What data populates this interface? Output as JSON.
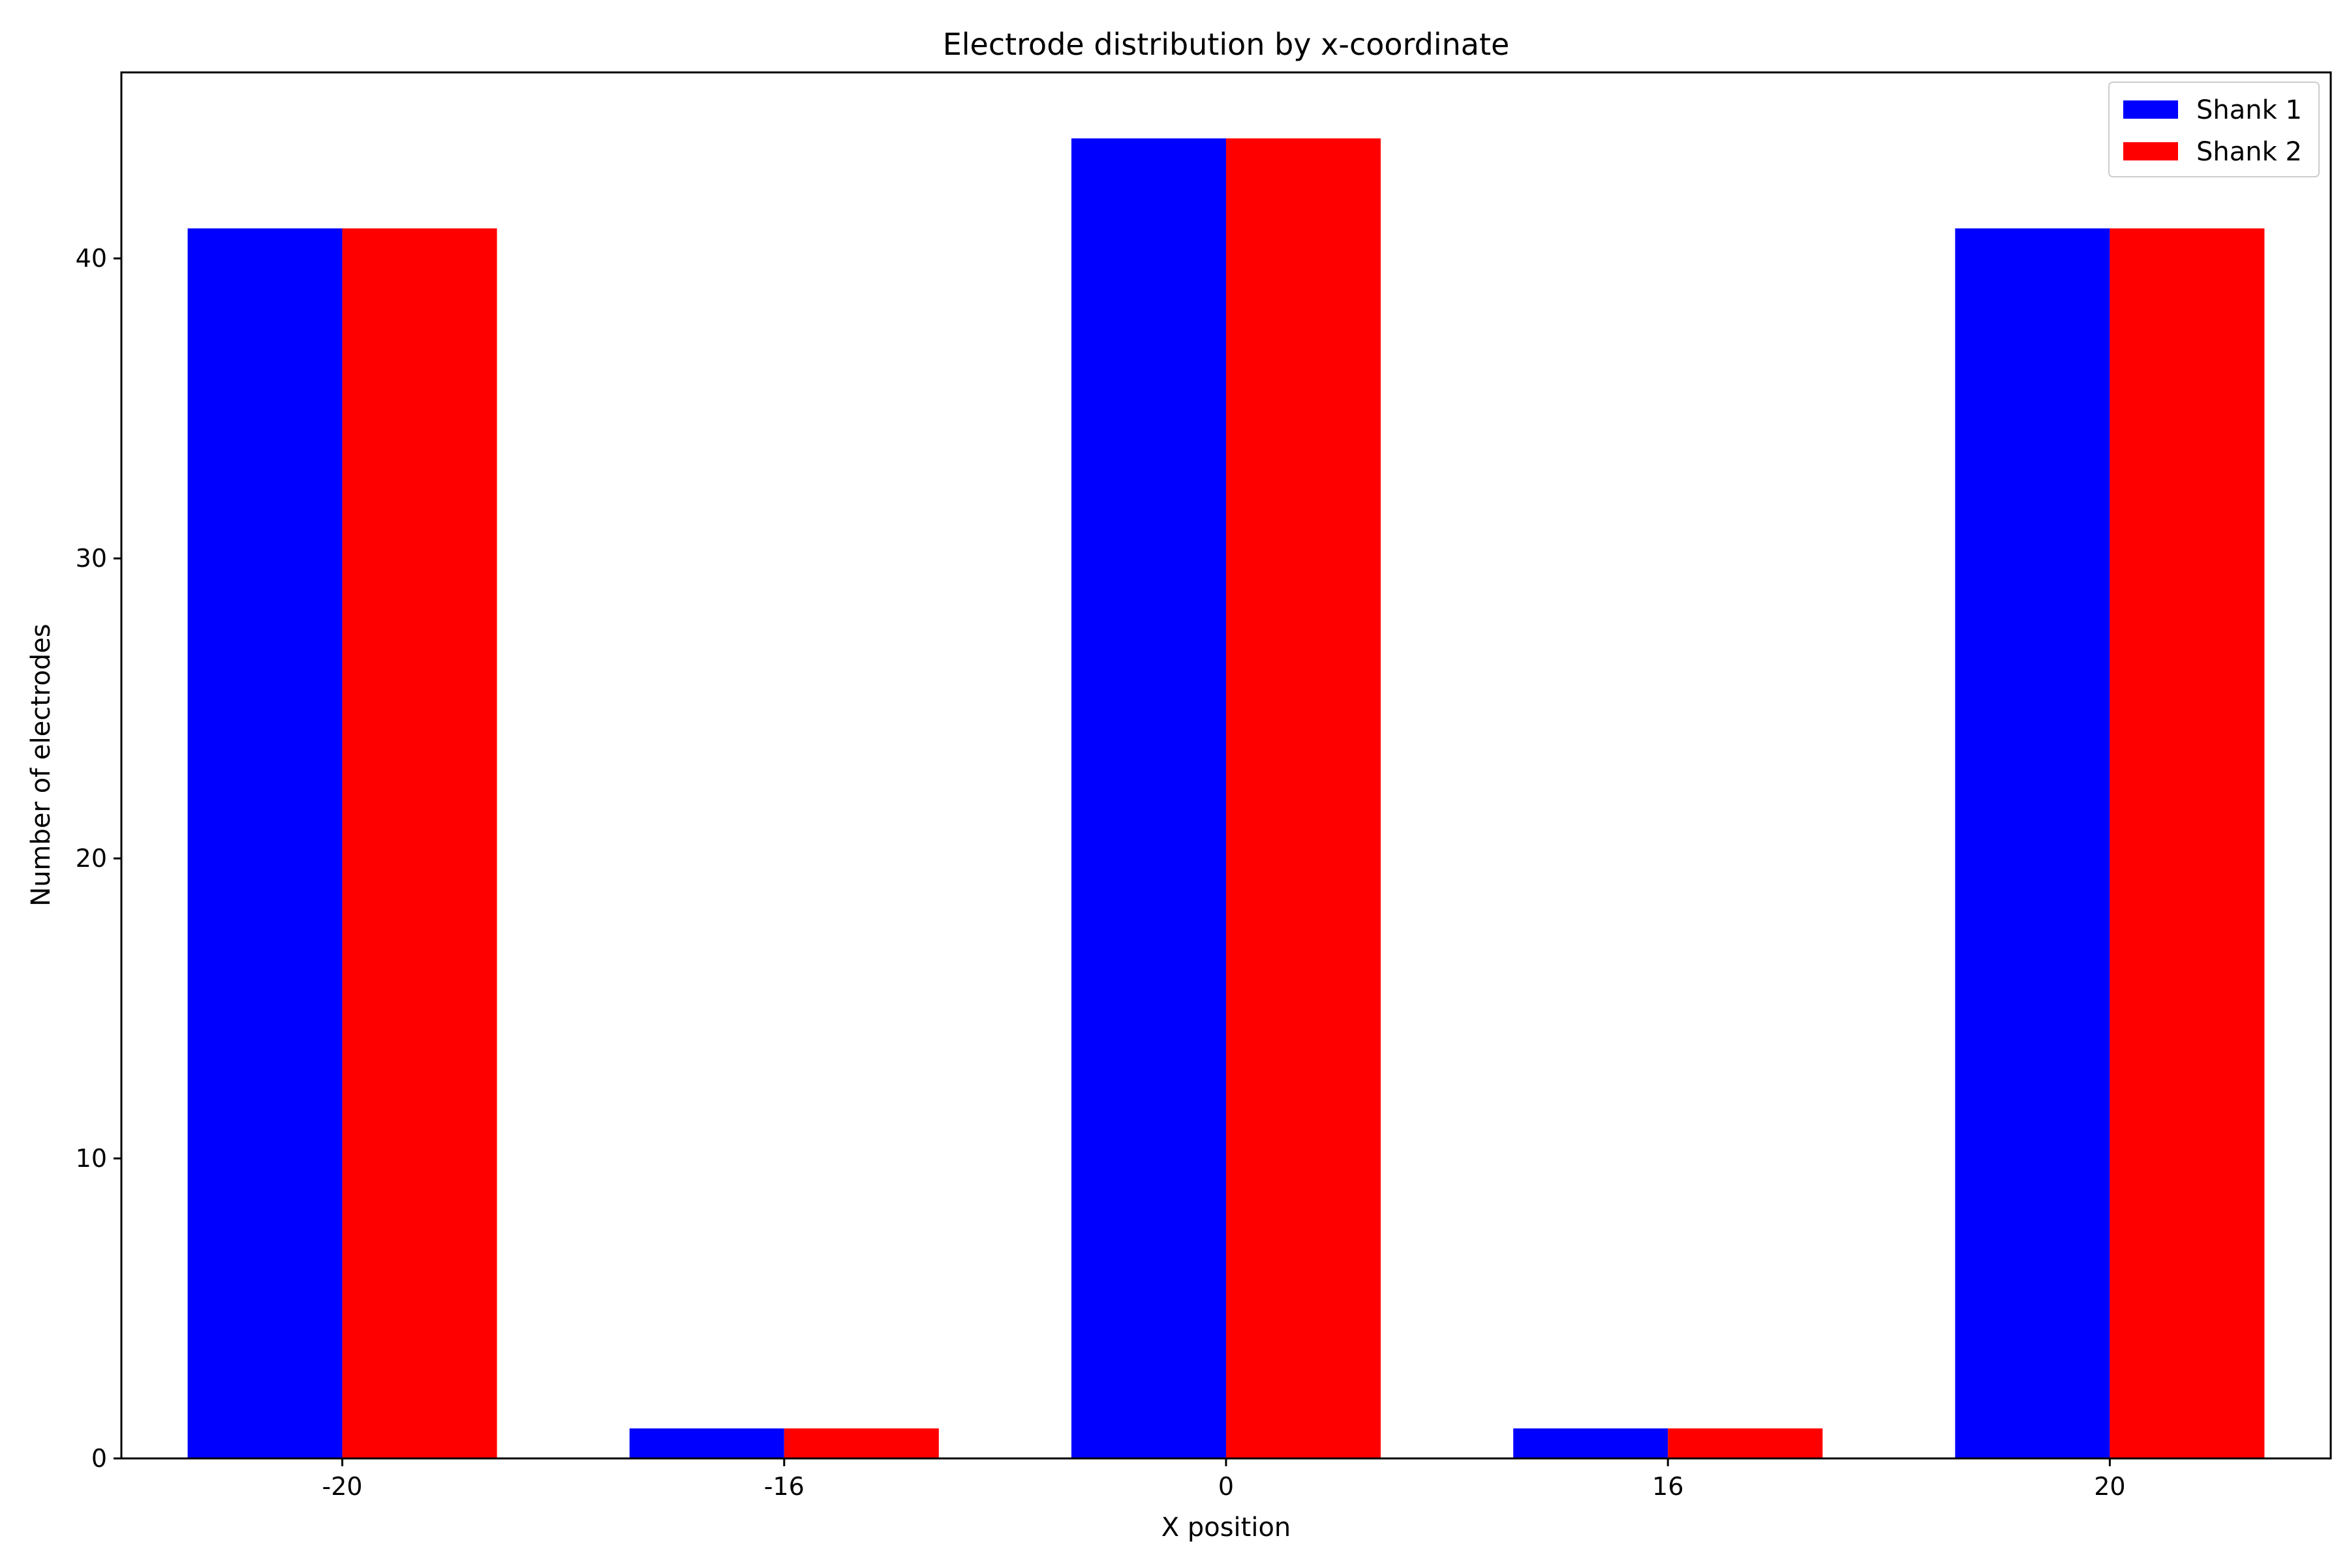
{
  "chart_data": {
    "type": "bar",
    "title": "Electrode distribution by x-coordinate",
    "xlabel": "X position",
    "ylabel": "Number of electrodes",
    "categories": [
      "-20",
      "-16",
      "0",
      "16",
      "20"
    ],
    "series": [
      {
        "name": "Shank 1",
        "color": "#0000ff",
        "values": [
          41,
          1,
          44,
          1,
          41
        ]
      },
      {
        "name": "Shank 2",
        "color": "#ff0000",
        "values": [
          41,
          1,
          44,
          1,
          41
        ]
      }
    ],
    "ylim": [
      0,
      46.2
    ],
    "yticks": [
      0,
      10,
      20,
      30,
      40
    ],
    "grid": false,
    "legend_position": "top-right"
  }
}
